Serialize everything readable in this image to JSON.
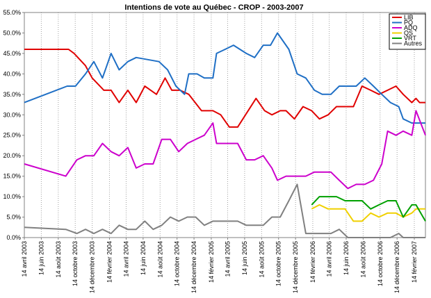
{
  "chart_data": {
    "type": "line",
    "title": "Intentions de vote au Québec - CROP - 2003-2007",
    "x_start": "2003-04-14",
    "x_end": "2007-03-26",
    "ylim": [
      0,
      55
    ],
    "ytick_values": [
      0,
      5,
      10,
      15,
      20,
      25,
      30,
      35,
      40,
      45,
      50,
      55
    ],
    "ytick_labels": [
      "0.0%",
      "5.0%",
      "10.0%",
      "15.0%",
      "20.0%",
      "25.0%",
      "30.0%",
      "35.0%",
      "40.0%",
      "45.0%",
      "50.0%",
      "55.0%"
    ],
    "xtick_dates": [
      "2003-04-14",
      "2003-06-14",
      "2003-08-14",
      "2003-10-14",
      "2003-12-14",
      "2004-02-14",
      "2004-04-14",
      "2004-06-14",
      "2004-08-14",
      "2004-10-14",
      "2004-12-14",
      "2005-02-14",
      "2005-04-14",
      "2005-06-14",
      "2005-08-14",
      "2005-10-14",
      "2005-12-14",
      "2006-02-14",
      "2006-04-14",
      "2006-06-14",
      "2006-08-14",
      "2006-10-14",
      "2006-12-14",
      "2007-02-14"
    ],
    "xtick_labels": [
      "14 avril 2003",
      "14 juin 2003",
      "14 août 2003",
      "14 octobre 2003",
      "14 décembre 2003",
      "14 février 2004",
      "14 avril 2004",
      "14 juin 2004",
      "14 août 2004",
      "14 octobre 2004",
      "14 décembre 2004",
      "14 février 2005",
      "14 avril 2005",
      "14 juin 2005",
      "14 août 2005",
      "14 octobre 2005",
      "14 décembre 2005",
      "14 février 2006",
      "14 avril 2006",
      "14 juin 2006",
      "14 août 2006",
      "14 octobre 2006",
      "14 décembre 2006",
      "14 février 2007"
    ],
    "grid": "vertical dotted",
    "legend_position": "top-right",
    "series": [
      {
        "name": "LIB",
        "color": "#e00000",
        "points": [
          [
            "2003-04-14",
            46
          ],
          [
            "2003-09-20",
            46
          ],
          [
            "2003-10-10",
            45
          ],
          [
            "2003-11-20",
            42
          ],
          [
            "2003-12-14",
            39
          ],
          [
            "2004-01-25",
            36
          ],
          [
            "2004-02-20",
            36
          ],
          [
            "2004-03-20",
            33
          ],
          [
            "2004-04-20",
            36
          ],
          [
            "2004-05-20",
            33
          ],
          [
            "2004-06-20",
            37
          ],
          [
            "2004-08-01",
            35
          ],
          [
            "2004-09-01",
            39
          ],
          [
            "2004-09-25",
            36
          ],
          [
            "2004-10-25",
            36
          ],
          [
            "2004-11-25",
            35
          ],
          [
            "2005-01-10",
            31
          ],
          [
            "2005-02-20",
            31
          ],
          [
            "2005-03-20",
            30
          ],
          [
            "2005-04-20",
            27
          ],
          [
            "2005-05-20",
            27
          ],
          [
            "2005-07-25",
            34
          ],
          [
            "2005-08-25",
            31
          ],
          [
            "2005-09-20",
            30
          ],
          [
            "2005-10-20",
            31
          ],
          [
            "2005-11-10",
            31
          ],
          [
            "2005-12-10",
            29
          ],
          [
            "2006-01-10",
            32
          ],
          [
            "2006-02-10",
            31
          ],
          [
            "2006-03-10",
            29
          ],
          [
            "2006-04-10",
            30
          ],
          [
            "2006-05-10",
            32
          ],
          [
            "2006-06-10",
            32
          ],
          [
            "2006-07-10",
            32
          ],
          [
            "2006-08-10",
            37
          ],
          [
            "2006-09-10",
            36
          ],
          [
            "2006-10-10",
            35
          ],
          [
            "2006-11-10",
            36
          ],
          [
            "2006-12-10",
            37
          ],
          [
            "2007-01-05",
            35
          ],
          [
            "2007-02-05",
            33
          ],
          [
            "2007-02-20",
            34
          ],
          [
            "2007-03-05",
            33
          ],
          [
            "2007-03-15",
            33
          ],
          [
            "2007-03-26",
            33
          ]
        ]
      },
      {
        "name": "PQ",
        "color": "#1f6fc5",
        "points": [
          [
            "2003-04-14",
            33
          ],
          [
            "2003-09-15",
            37
          ],
          [
            "2003-10-15",
            37
          ],
          [
            "2003-11-20",
            40
          ],
          [
            "2003-12-20",
            43
          ],
          [
            "2004-01-20",
            39
          ],
          [
            "2004-02-20",
            45
          ],
          [
            "2004-03-20",
            41
          ],
          [
            "2004-04-20",
            43
          ],
          [
            "2004-05-20",
            44
          ],
          [
            "2004-08-10",
            43
          ],
          [
            "2004-09-10",
            41
          ],
          [
            "2004-10-10",
            37
          ],
          [
            "2004-11-10",
            35
          ],
          [
            "2004-11-25",
            40
          ],
          [
            "2004-12-25",
            40
          ],
          [
            "2005-01-20",
            39
          ],
          [
            "2005-02-20",
            39
          ],
          [
            "2005-03-05",
            45
          ],
          [
            "2005-04-05",
            46
          ],
          [
            "2005-05-05",
            47
          ],
          [
            "2005-06-20",
            45
          ],
          [
            "2005-07-20",
            44
          ],
          [
            "2005-08-20",
            47
          ],
          [
            "2005-09-15",
            47
          ],
          [
            "2005-10-10",
            50
          ],
          [
            "2005-11-20",
            46
          ],
          [
            "2005-12-20",
            40
          ],
          [
            "2006-01-20",
            39
          ],
          [
            "2006-02-20",
            36
          ],
          [
            "2006-03-20",
            35
          ],
          [
            "2006-04-20",
            35
          ],
          [
            "2006-05-20",
            37
          ],
          [
            "2006-06-20",
            37
          ],
          [
            "2006-07-20",
            37
          ],
          [
            "2006-08-20",
            39
          ],
          [
            "2006-09-20",
            37
          ],
          [
            "2006-10-20",
            35
          ],
          [
            "2006-11-20",
            33
          ],
          [
            "2006-12-20",
            32
          ],
          [
            "2007-01-05",
            29
          ],
          [
            "2007-02-05",
            28
          ],
          [
            "2007-02-20",
            28
          ],
          [
            "2007-03-26",
            28
          ]
        ]
      },
      {
        "name": "ADQ",
        "color": "#cc00cc",
        "points": [
          [
            "2003-04-14",
            18
          ],
          [
            "2003-09-10",
            15
          ],
          [
            "2003-10-20",
            19
          ],
          [
            "2003-11-20",
            20
          ],
          [
            "2003-12-20",
            20
          ],
          [
            "2004-01-20",
            23
          ],
          [
            "2004-02-20",
            21
          ],
          [
            "2004-03-20",
            20
          ],
          [
            "2004-04-20",
            22
          ],
          [
            "2004-05-20",
            17
          ],
          [
            "2004-06-20",
            18
          ],
          [
            "2004-07-20",
            18
          ],
          [
            "2004-08-20",
            24
          ],
          [
            "2004-09-20",
            24
          ],
          [
            "2004-10-20",
            21
          ],
          [
            "2004-11-20",
            23
          ],
          [
            "2004-12-20",
            24
          ],
          [
            "2005-01-20",
            25
          ],
          [
            "2005-02-20",
            28
          ],
          [
            "2005-03-05",
            23
          ],
          [
            "2005-04-20",
            23
          ],
          [
            "2005-05-20",
            23
          ],
          [
            "2005-06-20",
            19
          ],
          [
            "2005-07-20",
            19
          ],
          [
            "2005-08-20",
            20
          ],
          [
            "2005-09-20",
            17
          ],
          [
            "2005-10-10",
            14
          ],
          [
            "2005-11-10",
            15
          ],
          [
            "2005-12-20",
            15
          ],
          [
            "2006-01-20",
            15
          ],
          [
            "2006-02-20",
            16
          ],
          [
            "2006-03-20",
            16
          ],
          [
            "2006-04-20",
            16
          ],
          [
            "2006-05-20",
            14
          ],
          [
            "2006-06-20",
            12
          ],
          [
            "2006-07-20",
            13
          ],
          [
            "2006-08-20",
            13
          ],
          [
            "2006-09-20",
            14
          ],
          [
            "2006-10-20",
            18
          ],
          [
            "2006-11-10",
            26
          ],
          [
            "2006-12-10",
            25
          ],
          [
            "2007-01-05",
            26
          ],
          [
            "2007-02-05",
            25
          ],
          [
            "2007-02-20",
            31
          ],
          [
            "2007-03-26",
            25
          ]
        ]
      },
      {
        "name": "QS",
        "color": "#f0d000",
        "points": [
          [
            "2006-02-10",
            7
          ],
          [
            "2006-03-10",
            8
          ],
          [
            "2006-04-10",
            7
          ],
          [
            "2006-05-10",
            7
          ],
          [
            "2006-06-10",
            7
          ],
          [
            "2006-07-10",
            4
          ],
          [
            "2006-08-10",
            4
          ],
          [
            "2006-09-10",
            6
          ],
          [
            "2006-10-10",
            5
          ],
          [
            "2006-11-10",
            6
          ],
          [
            "2006-12-10",
            6
          ],
          [
            "2007-01-05",
            5
          ],
          [
            "2007-02-05",
            6
          ],
          [
            "2007-02-20",
            7
          ],
          [
            "2007-03-26",
            7
          ]
        ]
      },
      {
        "name": "VRT",
        "color": "#00a000",
        "points": [
          [
            "2006-02-10",
            8
          ],
          [
            "2006-03-10",
            10
          ],
          [
            "2006-04-10",
            10
          ],
          [
            "2006-05-10",
            10
          ],
          [
            "2006-06-10",
            9
          ],
          [
            "2006-07-10",
            9
          ],
          [
            "2006-08-10",
            9
          ],
          [
            "2006-09-10",
            7
          ],
          [
            "2006-10-10",
            8
          ],
          [
            "2006-11-10",
            9
          ],
          [
            "2006-12-10",
            9
          ],
          [
            "2007-01-05",
            5
          ],
          [
            "2007-02-05",
            8
          ],
          [
            "2007-02-20",
            8
          ],
          [
            "2007-03-26",
            4
          ]
        ]
      },
      {
        "name": "Autres",
        "color": "#808080",
        "points": [
          [
            "2003-04-14",
            2.5
          ],
          [
            "2003-09-10",
            2
          ],
          [
            "2003-10-20",
            1
          ],
          [
            "2003-11-20",
            2
          ],
          [
            "2003-12-20",
            1
          ],
          [
            "2004-01-20",
            2
          ],
          [
            "2004-02-20",
            1
          ],
          [
            "2004-03-20",
            3
          ],
          [
            "2004-04-20",
            2
          ],
          [
            "2004-05-20",
            2
          ],
          [
            "2004-06-20",
            4
          ],
          [
            "2004-07-20",
            2
          ],
          [
            "2004-08-20",
            3
          ],
          [
            "2004-09-20",
            5
          ],
          [
            "2004-10-20",
            4
          ],
          [
            "2004-11-20",
            5
          ],
          [
            "2004-12-20",
            5
          ],
          [
            "2005-01-20",
            3
          ],
          [
            "2005-02-20",
            4
          ],
          [
            "2005-03-20",
            4
          ],
          [
            "2005-05-20",
            4
          ],
          [
            "2005-06-20",
            3
          ],
          [
            "2005-07-20",
            3
          ],
          [
            "2005-08-20",
            3
          ],
          [
            "2005-09-20",
            5
          ],
          [
            "2005-10-20",
            5
          ],
          [
            "2005-11-20",
            9
          ],
          [
            "2005-12-20",
            13
          ],
          [
            "2006-01-20",
            1
          ],
          [
            "2006-02-20",
            1
          ],
          [
            "2006-03-20",
            1
          ],
          [
            "2006-04-20",
            1
          ],
          [
            "2006-05-20",
            2
          ],
          [
            "2006-06-20",
            0
          ],
          [
            "2006-07-20",
            0
          ],
          [
            "2006-08-20",
            0
          ],
          [
            "2006-09-20",
            0
          ],
          [
            "2006-10-20",
            0
          ],
          [
            "2006-11-20",
            0
          ],
          [
            "2006-12-20",
            1
          ],
          [
            "2007-01-05",
            0
          ],
          [
            "2007-02-05",
            0
          ],
          [
            "2007-03-26",
            0
          ]
        ]
      }
    ]
  }
}
